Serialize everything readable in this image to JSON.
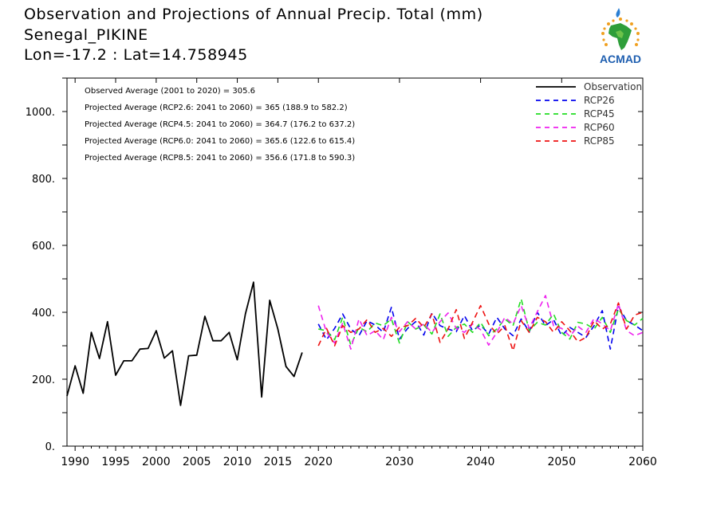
{
  "header": {
    "title": "Observation and Projections of Annual Precip. Total (mm)",
    "location": "Senegal_PIKINE",
    "coords": "Lon=-17.2 : Lat=14.758945"
  },
  "logo": {
    "text": "ACMAD"
  },
  "colors": {
    "observation": "#000000",
    "rcp26": "#0000ee",
    "rcp45": "#22dd22",
    "rcp60": "#ee22ee",
    "rcp85": "#ee1111"
  },
  "chart_data": {
    "type": "line",
    "title": "Observation and Projections of Annual Precip. Total (mm)",
    "xlim": [
      1989,
      2060
    ],
    "ylim": [
      0,
      1100
    ],
    "x_ticks": [
      1990,
      1995,
      2000,
      2005,
      2010,
      2015,
      2020,
      2030,
      2040,
      2050,
      2060
    ],
    "y_ticks": [
      {
        "value": 0,
        "label": "0."
      },
      {
        "value": 200,
        "label": "200."
      },
      {
        "value": 400,
        "label": "400."
      },
      {
        "value": 600,
        "label": "600."
      },
      {
        "value": 800,
        "label": "800."
      },
      {
        "value": 1000,
        "label": "1000."
      }
    ],
    "legend_position": "top-right",
    "annotations": [
      "Observed Average (2001 to 2020) = 305.6",
      "Projected Average (RCP2.6: 2041 to 2060) = 365 (188.9 to 582.2)",
      "Projected Average (RCP4.5: 2041 to 2060) = 364.7 (176.2 to 637.2)",
      "Projected Average (RCP6.0: 2041 to 2060) = 365.6 (122.6 to 615.4)",
      "Projected Average (RCP8.5: 2041 to 2060) = 356.6 (171.8 to 590.3)"
    ],
    "series": [
      {
        "name": "Observation",
        "style": "solid",
        "color": "#000000",
        "start_year": 1989,
        "values": [
          150,
          240,
          158,
          340,
          262,
          372,
          212,
          255,
          255,
          290,
          292,
          345,
          263,
          285,
          122,
          270,
          272,
          388,
          315,
          315,
          340,
          258,
          395,
          490,
          147,
          436,
          350,
          238,
          208,
          280
        ]
      },
      {
        "name": "RCP26",
        "style": "dashed",
        "color": "#0000ee",
        "start_year": 2020,
        "values": [
          365,
          318,
          352,
          395,
          350,
          330,
          375,
          362,
          340,
          415,
          320,
          352,
          372,
          332,
          398,
          360,
          350,
          342,
          390,
          345,
          362,
          335,
          385,
          350,
          330,
          380,
          342,
          400,
          360,
          378,
          330,
          355,
          340,
          325,
          360,
          405,
          290,
          418,
          375,
          362,
          345
        ]
      },
      {
        "name": "RCP45",
        "style": "dashed",
        "color": "#22dd22",
        "start_year": 2020,
        "values": [
          350,
          345,
          318,
          385,
          302,
          355,
          342,
          368,
          360,
          380,
          308,
          372,
          350,
          362,
          335,
          395,
          328,
          355,
          365,
          340,
          370,
          330,
          350,
          380,
          360,
          440,
          345,
          370,
          362,
          395,
          340,
          320,
          370,
          365,
          350,
          385,
          340,
          410,
          375,
          362,
          382
        ]
      },
      {
        "name": "RCP60",
        "style": "dashed",
        "color": "#ee22ee",
        "start_year": 2020,
        "values": [
          420,
          340,
          308,
          368,
          290,
          380,
          330,
          345,
          318,
          385,
          342,
          372,
          350,
          365,
          340,
          372,
          398,
          352,
          340,
          365,
          348,
          302,
          340,
          385,
          365,
          420,
          352,
          402,
          450,
          360,
          352,
          328,
          358,
          340,
          382,
          365,
          345,
          425,
          345,
          330,
          340
        ]
      },
      {
        "name": "RCP85",
        "style": "dashed",
        "color": "#ee1111",
        "start_year": 2020,
        "values": [
          300,
          352,
          300,
          360,
          340,
          350,
          378,
          340,
          352,
          328,
          355,
          360,
          382,
          355,
          395,
          310,
          350,
          408,
          322,
          370,
          420,
          365,
          335,
          360,
          285,
          375,
          340,
          385,
          372,
          340,
          372,
          345,
          312,
          325,
          375,
          350,
          365,
          428,
          350,
          392,
          400
        ]
      }
    ]
  }
}
